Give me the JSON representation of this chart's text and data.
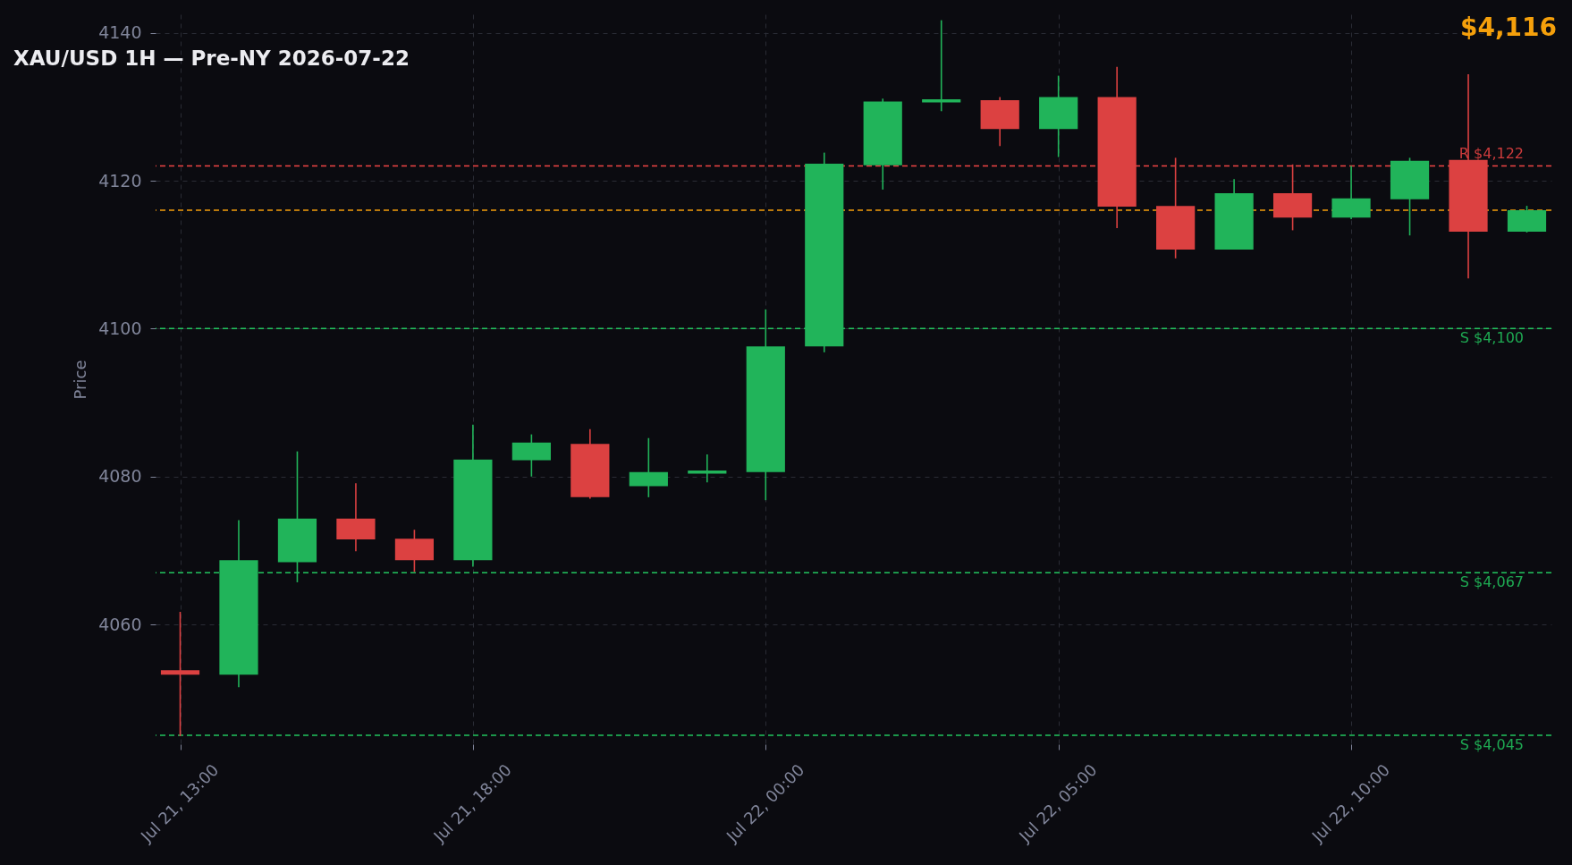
{
  "chart_data": {
    "type": "candlestick",
    "title": "XAU/USD 1H — Pre-NY 2026-07-22",
    "ylabel": "Price",
    "categories": [
      "Jul 21, 13:00",
      null,
      null,
      null,
      null,
      "Jul 21, 18:00",
      null,
      null,
      null,
      null,
      "Jul 22, 00:00",
      null,
      null,
      null,
      null,
      "Jul 22, 05:00",
      null,
      null,
      null,
      null,
      "Jul 22, 10:00",
      null,
      null,
      null
    ],
    "ohlc": [
      [
        4053.8,
        4061.7,
        4044.9,
        4053.2
      ],
      [
        4053.2,
        4074.1,
        4051.5,
        4068.7
      ],
      [
        4068.4,
        4083.4,
        4065.7,
        4074.3
      ],
      [
        4074.3,
        4079.1,
        4069.9,
        4071.5
      ],
      [
        4071.6,
        4072.8,
        4067.1,
        4068.7
      ],
      [
        4068.7,
        4087.0,
        4067.8,
        4082.3
      ],
      [
        4082.2,
        4085.7,
        4080.0,
        4084.6
      ],
      [
        4084.4,
        4086.4,
        4077.0,
        4077.2
      ],
      [
        4078.7,
        4085.2,
        4077.2,
        4080.6
      ],
      [
        4080.4,
        4083.0,
        4079.2,
        4080.8
      ],
      [
        4080.6,
        4102.6,
        4076.8,
        4097.6
      ],
      [
        4097.6,
        4123.8,
        4096.8,
        4122.3
      ],
      [
        4122.1,
        4131.1,
        4118.8,
        4130.7
      ],
      [
        4130.6,
        4141.7,
        4129.4,
        4131.0
      ],
      [
        4130.9,
        4131.3,
        4124.7,
        4127.0
      ],
      [
        4127.0,
        4134.2,
        4123.2,
        4131.3
      ],
      [
        4131.3,
        4135.4,
        4113.6,
        4116.5
      ],
      [
        4116.6,
        4123.1,
        4109.5,
        4110.7
      ],
      [
        4110.7,
        4120.2,
        4110.7,
        4118.3
      ],
      [
        4118.3,
        4122.2,
        4113.3,
        4115.0
      ],
      [
        4115.0,
        4122.0,
        4114.8,
        4117.6
      ],
      [
        4117.5,
        4123.1,
        4112.6,
        4122.7
      ],
      [
        4122.8,
        4134.4,
        4106.8,
        4113.1
      ],
      [
        4113.1,
        4116.6,
        4113.0,
        4116.0
      ]
    ],
    "colors": [
      "#dc4141",
      "#21b45a",
      "#21b45a",
      "#dc4141",
      "#dc4141",
      "#21b45a",
      "#21b45a",
      "#dc4141",
      "#21b45a",
      "#21b45a",
      "#21b45a",
      "#21b45a",
      "#21b45a",
      "#21b45a",
      "#dc4141",
      "#21b45a",
      "#dc4141",
      "#dc4141",
      "#21b45a",
      "#dc4141",
      "#21b45a",
      "#21b45a",
      "#dc4141",
      "#21b45a"
    ],
    "ylim": [
      4043.8,
      4142.5
    ],
    "yticks": [
      4060,
      4080,
      4100,
      4120,
      4140
    ],
    "ref_lines": [
      {
        "axis": "y",
        "value": 4122,
        "label": "R $4,122",
        "color": "#ef4444",
        "line_style": "dashed"
      },
      {
        "axis": "y",
        "value": 4116,
        "color": "#f59e0b",
        "line_style": "dashed"
      },
      {
        "axis": "y",
        "value": 4100,
        "label": "S $4,100",
        "color": "#22c55e",
        "line_style": "dashed"
      },
      {
        "axis": "y",
        "value": 4067,
        "label": "S $4,067",
        "color": "#22c55e",
        "line_style": "dashed"
      },
      {
        "axis": "y",
        "value": 4045,
        "label": "S $4,045",
        "color": "#22c55e",
        "line_style": "dashed"
      }
    ],
    "annotations": [
      "$4,116"
    ],
    "grid": true
  }
}
